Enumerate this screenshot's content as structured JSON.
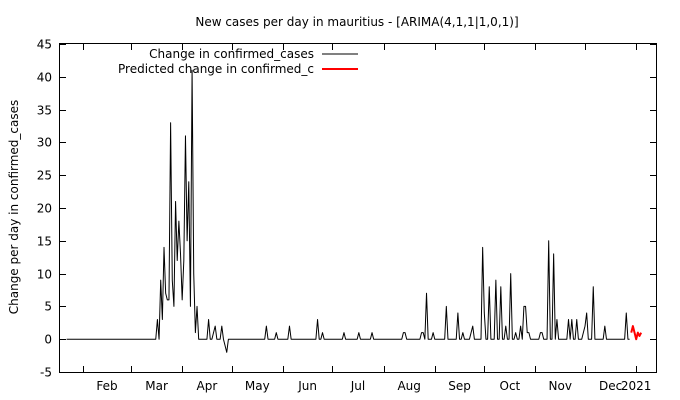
{
  "chart_data": {
    "type": "line",
    "title": "New cases per day in mauritius -  [ARIMA(4,1,1|1,0,1)]",
    "xlabel": "",
    "ylabel": "Change per day in confirmed_cases",
    "xlim": [
      "2020-01-18",
      "2021-01-13"
    ],
    "ylim": [
      -5,
      45
    ],
    "yticks": [
      -5,
      0,
      5,
      10,
      15,
      20,
      25,
      30,
      35,
      40,
      45
    ],
    "xticks": [
      {
        "date": "2020-02-01",
        "label": "Feb"
      },
      {
        "date": "2020-03-01",
        "label": "Mar"
      },
      {
        "date": "2020-04-01",
        "label": "Apr"
      },
      {
        "date": "2020-05-01",
        "label": "May"
      },
      {
        "date": "2020-06-01",
        "label": "Jun"
      },
      {
        "date": "2020-07-01",
        "label": "Jul"
      },
      {
        "date": "2020-08-01",
        "label": "Aug"
      },
      {
        "date": "2020-09-01",
        "label": "Sep"
      },
      {
        "date": "2020-10-01",
        "label": "Oct"
      },
      {
        "date": "2020-11-01",
        "label": "Nov"
      },
      {
        "date": "2020-12-01",
        "label": "Dec"
      },
      {
        "date": "2021-01-01",
        "label": "2021"
      }
    ],
    "grid": false,
    "legend_position": "top-left",
    "series": [
      {
        "name": "Change in confirmed_cases",
        "color": "#000000",
        "points": [
          [
            "2020-01-22",
            0
          ],
          [
            "2020-03-16",
            0
          ],
          [
            "2020-03-17",
            3
          ],
          [
            "2020-03-18",
            0
          ],
          [
            "2020-03-19",
            9
          ],
          [
            "2020-03-20",
            3
          ],
          [
            "2020-03-21",
            14
          ],
          [
            "2020-03-22",
            7
          ],
          [
            "2020-03-23",
            6
          ],
          [
            "2020-03-24",
            6
          ],
          [
            "2020-03-25",
            33
          ],
          [
            "2020-03-26",
            9
          ],
          [
            "2020-03-27",
            5
          ],
          [
            "2020-03-28",
            21
          ],
          [
            "2020-03-29",
            12
          ],
          [
            "2020-03-30",
            18
          ],
          [
            "2020-03-31",
            13
          ],
          [
            "2020-04-01",
            6
          ],
          [
            "2020-04-02",
            12
          ],
          [
            "2020-04-03",
            31
          ],
          [
            "2020-04-04",
            15
          ],
          [
            "2020-04-05",
            24
          ],
          [
            "2020-04-06",
            5
          ],
          [
            "2020-04-07",
            41
          ],
          [
            "2020-04-08",
            10
          ],
          [
            "2020-04-09",
            1
          ],
          [
            "2020-04-10",
            5
          ],
          [
            "2020-04-11",
            0
          ],
          [
            "2020-04-12",
            0
          ],
          [
            "2020-04-13",
            0
          ],
          [
            "2020-04-14",
            0
          ],
          [
            "2020-04-15",
            0
          ],
          [
            "2020-04-16",
            0
          ],
          [
            "2020-04-17",
            3
          ],
          [
            "2020-04-18",
            0
          ],
          [
            "2020-04-19",
            0
          ],
          [
            "2020-04-20",
            1
          ],
          [
            "2020-04-21",
            2
          ],
          [
            "2020-04-22",
            0
          ],
          [
            "2020-04-23",
            0
          ],
          [
            "2020-04-24",
            0
          ],
          [
            "2020-04-25",
            2
          ],
          [
            "2020-04-26",
            0
          ],
          [
            "2020-04-27",
            -1
          ],
          [
            "2020-04-28",
            -2
          ],
          [
            "2020-04-29",
            0
          ],
          [
            "2020-05-21",
            0
          ],
          [
            "2020-05-22",
            2
          ],
          [
            "2020-05-23",
            0
          ],
          [
            "2020-05-27",
            0
          ],
          [
            "2020-05-28",
            1
          ],
          [
            "2020-05-29",
            0
          ],
          [
            "2020-06-04",
            0
          ],
          [
            "2020-06-05",
            2
          ],
          [
            "2020-06-06",
            0
          ],
          [
            "2020-06-21",
            0
          ],
          [
            "2020-06-22",
            3
          ],
          [
            "2020-06-23",
            0
          ],
          [
            "2020-06-24",
            0
          ],
          [
            "2020-06-25",
            1
          ],
          [
            "2020-06-26",
            0
          ],
          [
            "2020-07-07",
            0
          ],
          [
            "2020-07-08",
            1
          ],
          [
            "2020-07-09",
            0
          ],
          [
            "2020-07-16",
            0
          ],
          [
            "2020-07-17",
            1
          ],
          [
            "2020-07-18",
            0
          ],
          [
            "2020-07-24",
            0
          ],
          [
            "2020-07-25",
            1
          ],
          [
            "2020-07-26",
            0
          ],
          [
            "2020-08-12",
            0
          ],
          [
            "2020-08-13",
            1
          ],
          [
            "2020-08-14",
            1
          ],
          [
            "2020-08-15",
            0
          ],
          [
            "2020-08-23",
            0
          ],
          [
            "2020-08-24",
            1
          ],
          [
            "2020-08-25",
            1
          ],
          [
            "2020-08-26",
            0
          ],
          [
            "2020-08-27",
            7
          ],
          [
            "2020-08-28",
            0
          ],
          [
            "2020-08-30",
            0
          ],
          [
            "2020-08-31",
            1
          ],
          [
            "2020-09-01",
            0
          ],
          [
            "2020-09-07",
            0
          ],
          [
            "2020-09-08",
            5
          ],
          [
            "2020-09-09",
            0
          ],
          [
            "2020-09-14",
            0
          ],
          [
            "2020-09-15",
            4
          ],
          [
            "2020-09-16",
            0
          ],
          [
            "2020-09-17",
            0
          ],
          [
            "2020-09-18",
            1
          ],
          [
            "2020-09-19",
            0
          ],
          [
            "2020-09-22",
            0
          ],
          [
            "2020-09-23",
            1
          ],
          [
            "2020-09-24",
            2
          ],
          [
            "2020-09-25",
            0
          ],
          [
            "2020-09-29",
            0
          ],
          [
            "2020-09-30",
            14
          ],
          [
            "2020-10-01",
            4
          ],
          [
            "2020-10-02",
            0
          ],
          [
            "2020-10-03",
            0
          ],
          [
            "2020-10-04",
            8
          ],
          [
            "2020-10-05",
            0
          ],
          [
            "2020-10-06",
            0
          ],
          [
            "2020-10-07",
            0
          ],
          [
            "2020-10-08",
            9
          ],
          [
            "2020-10-09",
            0
          ],
          [
            "2020-10-10",
            0
          ],
          [
            "2020-10-11",
            8
          ],
          [
            "2020-10-12",
            0
          ],
          [
            "2020-10-13",
            0
          ],
          [
            "2020-10-14",
            2
          ],
          [
            "2020-10-15",
            0
          ],
          [
            "2020-10-16",
            0
          ],
          [
            "2020-10-17",
            10
          ],
          [
            "2020-10-18",
            0
          ],
          [
            "2020-10-19",
            0
          ],
          [
            "2020-10-20",
            1
          ],
          [
            "2020-10-21",
            0
          ],
          [
            "2020-10-22",
            0
          ],
          [
            "2020-10-23",
            2
          ],
          [
            "2020-10-24",
            0
          ],
          [
            "2020-10-25",
            5
          ],
          [
            "2020-10-26",
            5
          ],
          [
            "2020-10-27",
            1
          ],
          [
            "2020-10-28",
            1
          ],
          [
            "2020-10-29",
            0
          ],
          [
            "2020-11-02",
            0
          ],
          [
            "2020-11-03",
            0
          ],
          [
            "2020-11-04",
            1
          ],
          [
            "2020-11-05",
            1
          ],
          [
            "2020-11-06",
            0
          ],
          [
            "2020-11-08",
            0
          ],
          [
            "2020-11-09",
            15
          ],
          [
            "2020-11-10",
            0
          ],
          [
            "2020-11-11",
            0
          ],
          [
            "2020-11-12",
            13
          ],
          [
            "2020-11-13",
            0
          ],
          [
            "2020-11-14",
            3
          ],
          [
            "2020-11-15",
            0
          ],
          [
            "2020-11-20",
            0
          ],
          [
            "2020-11-21",
            3
          ],
          [
            "2020-11-22",
            0
          ],
          [
            "2020-11-23",
            3
          ],
          [
            "2020-11-24",
            0
          ],
          [
            "2020-11-25",
            0
          ],
          [
            "2020-11-26",
            3
          ],
          [
            "2020-11-27",
            0
          ],
          [
            "2020-11-28",
            0
          ],
          [
            "2020-11-29",
            0
          ],
          [
            "2020-11-30",
            1
          ],
          [
            "2020-12-01",
            2
          ],
          [
            "2020-12-02",
            4
          ],
          [
            "2020-12-03",
            0
          ],
          [
            "2020-12-04",
            0
          ],
          [
            "2020-12-05",
            0
          ],
          [
            "2020-12-06",
            8
          ],
          [
            "2020-12-07",
            0
          ],
          [
            "2020-12-12",
            0
          ],
          [
            "2020-12-13",
            2
          ],
          [
            "2020-12-14",
            0
          ],
          [
            "2020-12-25",
            0
          ],
          [
            "2020-12-26",
            4
          ],
          [
            "2020-12-27",
            0
          ],
          [
            "2020-12-28",
            0
          ]
        ]
      },
      {
        "name": "Predicted change in confirmed_c",
        "color": "#ff0000",
        "points": [
          [
            "2020-12-29",
            1
          ],
          [
            "2020-12-30",
            2
          ],
          [
            "2020-12-31",
            1
          ],
          [
            "2021-01-01",
            0
          ],
          [
            "2021-01-02",
            1
          ],
          [
            "2021-01-03",
            0.5
          ],
          [
            "2021-01-04",
            1
          ]
        ]
      }
    ]
  }
}
